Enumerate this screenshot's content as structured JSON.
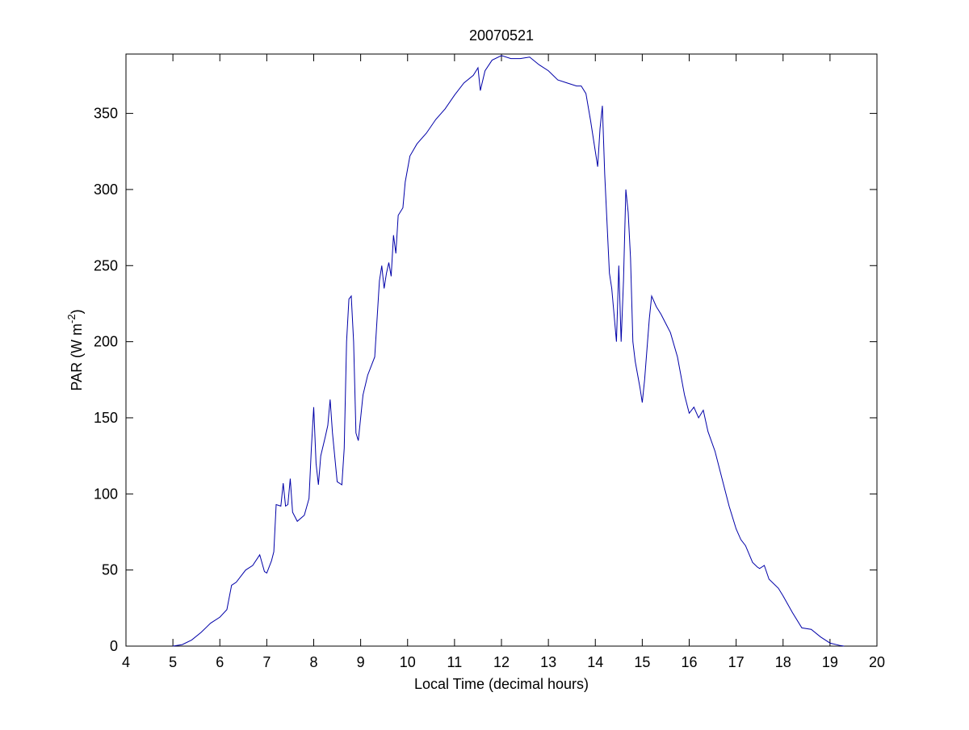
{
  "chart_data": {
    "type": "line",
    "title": "20070521",
    "xlabel": "Local Time (decimal hours)",
    "ylabel": {
      "text": "PAR (W m",
      "superscript": "-2",
      "suffix": ")"
    },
    "color": "#0000a8",
    "x": [
      5.0,
      5.2,
      5.4,
      5.6,
      5.8,
      6.0,
      6.15,
      6.25,
      6.35,
      6.45,
      6.55,
      6.7,
      6.85,
      6.95,
      7.0,
      7.1,
      7.15,
      7.2,
      7.3,
      7.35,
      7.4,
      7.45,
      7.5,
      7.55,
      7.65,
      7.8,
      7.9,
      7.95,
      8.0,
      8.05,
      8.1,
      8.15,
      8.25,
      8.3,
      8.35,
      8.4,
      8.5,
      8.6,
      8.65,
      8.7,
      8.75,
      8.8,
      8.85,
      8.9,
      8.95,
      9.05,
      9.15,
      9.3,
      9.4,
      9.45,
      9.5,
      9.55,
      9.6,
      9.65,
      9.7,
      9.75,
      9.8,
      9.9,
      9.95,
      10.05,
      10.2,
      10.4,
      10.6,
      10.8,
      11.0,
      11.2,
      11.4,
      11.5,
      11.55,
      11.65,
      11.8,
      12.0,
      12.2,
      12.4,
      12.6,
      12.8,
      13.0,
      13.2,
      13.4,
      13.6,
      13.7,
      13.8,
      13.9,
      14.0,
      14.05,
      14.1,
      14.15,
      14.2,
      14.3,
      14.35,
      14.45,
      14.5,
      14.55,
      14.6,
      14.65,
      14.7,
      14.75,
      14.8,
      14.85,
      14.95,
      15.0,
      15.05,
      15.15,
      15.2,
      15.3,
      15.4,
      15.5,
      15.6,
      15.75,
      15.9,
      16.0,
      16.1,
      16.2,
      16.3,
      16.4,
      16.55,
      16.7,
      16.85,
      17.0,
      17.1,
      17.2,
      17.35,
      17.45,
      17.5,
      17.6,
      17.7,
      17.9,
      18.0,
      18.2,
      18.4,
      18.6,
      18.8,
      19.0,
      19.2,
      19.3
    ],
    "values": [
      0,
      1,
      4,
      9,
      15,
      19,
      24,
      40,
      42,
      46,
      50,
      53,
      60,
      49,
      48,
      56,
      62,
      93,
      92,
      107,
      92,
      93,
      110,
      88,
      82,
      86,
      97,
      130,
      157,
      120,
      106,
      125,
      138,
      145,
      162,
      140,
      108,
      106,
      130,
      200,
      228,
      230,
      200,
      140,
      135,
      165,
      178,
      190,
      240,
      250,
      235,
      245,
      252,
      243,
      270,
      258,
      283,
      288,
      305,
      322,
      330,
      337,
      346,
      353,
      362,
      370,
      375,
      380,
      365,
      378,
      385,
      388,
      386,
      386,
      387,
      382,
      378,
      372,
      370,
      368,
      368,
      363,
      345,
      325,
      315,
      340,
      355,
      310,
      245,
      235,
      200,
      250,
      200,
      240,
      300,
      285,
      255,
      200,
      187,
      170,
      160,
      175,
      215,
      230,
      223,
      218,
      212,
      206,
      190,
      165,
      153,
      157,
      150,
      155,
      141,
      128,
      110,
      92,
      77,
      70,
      66,
      55,
      52,
      51,
      53,
      44,
      38,
      33,
      22,
      12,
      11,
      6,
      2,
      0.5,
      0
    ],
    "xlim": [
      4,
      20
    ],
    "xticks": [
      4,
      5,
      6,
      7,
      8,
      9,
      10,
      11,
      12,
      13,
      14,
      15,
      16,
      17,
      18,
      19,
      20
    ],
    "ylim": [
      0,
      389
    ],
    "yticks": [
      0,
      50,
      100,
      150,
      200,
      250,
      300,
      350
    ]
  }
}
